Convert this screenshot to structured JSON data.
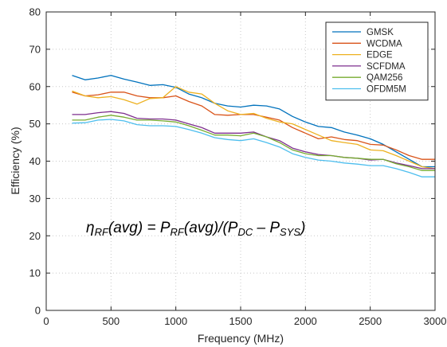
{
  "chart_data": {
    "type": "line",
    "xlabel": "Frequency (MHz)",
    "ylabel": "Efficiency (%)",
    "xlim": [
      0,
      3000
    ],
    "ylim": [
      0,
      80
    ],
    "xticks": [
      0,
      500,
      1000,
      1500,
      2000,
      2500,
      3000
    ],
    "yticks": [
      0,
      10,
      20,
      30,
      40,
      50,
      60,
      70,
      80
    ],
    "grid": true,
    "legend_position": "top-right",
    "annotation": {
      "eta": "η",
      "eta_sub": "RF",
      "t1": "(avg) = P",
      "t1_sub": "RF",
      "t2": "(avg)/(P",
      "t2_sub_dc": "DC",
      "t3": " – P",
      "t3_sub": "SYS",
      "t4": ")"
    },
    "x": [
      200,
      300,
      400,
      500,
      600,
      700,
      800,
      900,
      1000,
      1100,
      1200,
      1300,
      1400,
      1500,
      1600,
      1700,
      1800,
      1900,
      2000,
      2100,
      2200,
      2300,
      2400,
      2500,
      2600,
      2700,
      2800,
      2900,
      3000
    ],
    "series": [
      {
        "name": "GMSK",
        "color": "#0072BD",
        "values": [
          63.0,
          61.8,
          62.3,
          63.0,
          62.0,
          61.2,
          60.3,
          60.5,
          59.8,
          58.0,
          57.0,
          55.5,
          54.8,
          54.5,
          55.0,
          54.8,
          54.0,
          52.0,
          50.5,
          49.3,
          49.0,
          47.8,
          47.0,
          46.0,
          44.5,
          42.5,
          40.5,
          38.5,
          38.5
        ]
      },
      {
        "name": "WCDMA",
        "color": "#D95319",
        "values": [
          58.5,
          57.5,
          57.8,
          58.5,
          58.5,
          57.5,
          57.0,
          57.0,
          57.5,
          56.0,
          54.8,
          52.5,
          52.3,
          52.5,
          52.5,
          51.8,
          51.0,
          49.0,
          47.5,
          46.0,
          46.5,
          45.8,
          45.5,
          44.5,
          44.3,
          43.0,
          41.5,
          40.5,
          40.5
        ]
      },
      {
        "name": "EDGE",
        "color": "#EDB120",
        "values": [
          58.8,
          57.5,
          57.0,
          57.3,
          56.5,
          55.3,
          56.8,
          57.0,
          60.0,
          58.5,
          58.0,
          55.5,
          53.5,
          52.5,
          52.8,
          51.5,
          50.5,
          50.0,
          48.5,
          47.0,
          45.5,
          45.0,
          44.5,
          43.0,
          42.8,
          41.5,
          40.0,
          38.5,
          38.0
        ]
      },
      {
        "name": "SCFDMA",
        "color": "#7E2F8E",
        "values": [
          52.5,
          52.5,
          53.0,
          53.3,
          52.8,
          51.5,
          51.3,
          51.3,
          51.0,
          50.0,
          49.0,
          47.5,
          47.5,
          47.5,
          47.8,
          46.5,
          45.5,
          43.5,
          42.5,
          41.8,
          41.5,
          41.0,
          40.8,
          40.3,
          40.5,
          39.5,
          38.8,
          38.0,
          38.0
        ]
      },
      {
        "name": "QAM256",
        "color": "#77AC30",
        "values": [
          51.0,
          51.0,
          51.8,
          52.3,
          51.8,
          51.0,
          51.0,
          50.8,
          50.5,
          49.5,
          48.3,
          47.0,
          47.0,
          46.8,
          47.5,
          46.5,
          45.0,
          43.0,
          42.0,
          41.5,
          41.5,
          41.0,
          40.8,
          40.5,
          40.5,
          39.3,
          38.5,
          37.5,
          37.5
        ]
      },
      {
        "name": "OFDM5M",
        "color": "#4DBEEE",
        "values": [
          50.2,
          50.3,
          51.0,
          51.2,
          50.8,
          49.8,
          49.5,
          49.5,
          49.3,
          48.5,
          47.5,
          46.3,
          45.8,
          45.5,
          46.0,
          45.0,
          43.8,
          42.0,
          41.0,
          40.3,
          40.0,
          39.5,
          39.2,
          38.8,
          38.8,
          38.0,
          37.0,
          35.8,
          35.8
        ]
      }
    ]
  }
}
